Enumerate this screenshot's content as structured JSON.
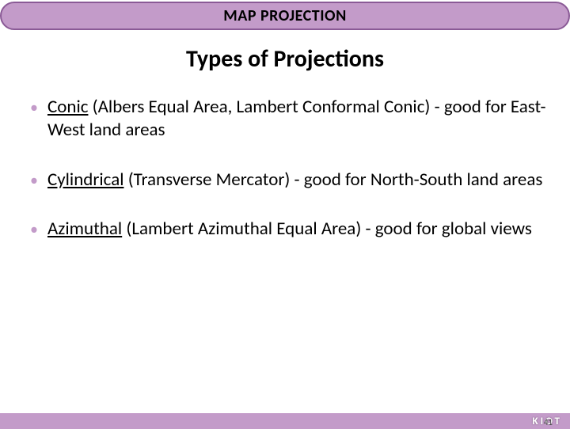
{
  "header": {
    "title": "MAP PROJECTION",
    "bg_color": "#c39bc9",
    "border_color": "#8a5a96",
    "title_color": "#000000",
    "title_fontsize": 20
  },
  "subtitle": {
    "text": "Types of Projections",
    "fontsize": 30,
    "color": "#000000"
  },
  "bullets": [
    {
      "term": "Conic",
      "rest": " (Albers Equal Area, Lambert Conformal Conic) - good for East-West land areas"
    },
    {
      "term": "Cylindrical",
      "rest": " (Transverse Mercator) - good for North-South land areas"
    },
    {
      "term": "Azimuthal",
      "rest": " (Lambert Azimuthal Equal Area) - good for global views"
    }
  ],
  "bullet_style": {
    "marker_color": "#c39bc9",
    "fontsize": 23,
    "text_color": "#000000"
  },
  "footer": {
    "text": "KIOT",
    "bg_color": "#c39bc9",
    "text_color": "#ffffff",
    "page_number": "41"
  }
}
